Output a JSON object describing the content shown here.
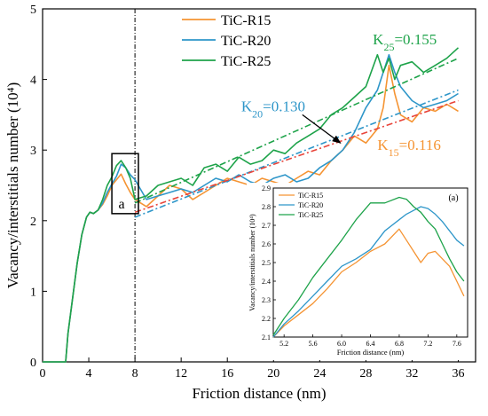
{
  "chart_data": {
    "type": "line",
    "xlabel": "Friction distance (nm)",
    "ylabel": "Vacancy/interstitials number (10⁴)",
    "xlim": [
      0,
      37.5
    ],
    "ylim": [
      0,
      5
    ],
    "x_ticks": [
      0,
      4,
      8,
      12,
      16,
      20,
      24,
      28,
      32,
      36
    ],
    "y_ticks": [
      0,
      1,
      2,
      3,
      4,
      5
    ],
    "legend_position": "top-center",
    "grid": false,
    "vline_x": 8,
    "box_label": "a",
    "box_range": {
      "x": [
        6.0,
        8.3
      ],
      "y": [
        2.1,
        2.95
      ]
    },
    "series": [
      {
        "name": "TiC-R15",
        "color": "#f59433",
        "x": [
          0,
          2.0,
          2.2,
          2.6,
          3.0,
          3.4,
          3.8,
          4.1,
          4.4,
          4.8,
          5.2,
          5.6,
          6.0,
          6.4,
          6.8,
          7.2,
          7.6,
          8.0,
          9.0,
          10,
          11,
          12,
          13,
          14,
          15,
          16,
          17,
          18,
          19,
          20,
          21,
          22,
          23,
          24,
          25,
          26,
          27,
          28,
          29,
          29.5,
          30,
          30.5,
          31,
          32,
          33,
          34,
          35,
          36
        ],
        "y": [
          0,
          0,
          0.4,
          0.9,
          1.4,
          1.8,
          2.05,
          2.12,
          2.1,
          2.15,
          2.23,
          2.35,
          2.5,
          2.58,
          2.66,
          2.52,
          2.4,
          2.3,
          2.2,
          2.35,
          2.5,
          2.45,
          2.3,
          2.4,
          2.5,
          2.6,
          2.55,
          2.5,
          2.6,
          2.55,
          2.5,
          2.6,
          2.7,
          2.65,
          2.85,
          3.0,
          3.2,
          3.1,
          3.3,
          3.6,
          4.2,
          3.8,
          3.5,
          3.4,
          3.6,
          3.55,
          3.65,
          3.55
        ]
      },
      {
        "name": "TiC-R20",
        "color": "#2e96c9",
        "x": [
          0,
          2.0,
          2.2,
          2.6,
          3.0,
          3.4,
          3.8,
          4.1,
          4.4,
          4.8,
          5.2,
          5.6,
          6.0,
          6.4,
          6.8,
          7.2,
          7.6,
          8.0,
          9.0,
          10,
          11,
          12,
          13,
          14,
          15,
          16,
          17,
          18,
          19,
          20,
          21,
          22,
          23,
          24,
          25,
          26,
          27,
          28,
          29,
          30,
          30.5,
          31,
          32,
          33,
          34,
          35,
          36
        ],
        "y": [
          0,
          0,
          0.4,
          0.9,
          1.4,
          1.8,
          2.05,
          2.12,
          2.1,
          2.15,
          2.25,
          2.4,
          2.52,
          2.63,
          2.8,
          2.75,
          2.65,
          2.58,
          2.3,
          2.35,
          2.4,
          2.45,
          2.4,
          2.5,
          2.6,
          2.55,
          2.65,
          2.55,
          2.5,
          2.6,
          2.65,
          2.55,
          2.6,
          2.75,
          2.85,
          3.0,
          3.25,
          3.6,
          3.85,
          4.35,
          4.1,
          3.9,
          3.7,
          3.6,
          3.65,
          3.7,
          3.8
        ]
      },
      {
        "name": "TiC-R25",
        "color": "#1ea34a",
        "x": [
          0,
          2.0,
          2.2,
          2.6,
          3.0,
          3.4,
          3.8,
          4.1,
          4.4,
          4.8,
          5.2,
          5.6,
          6.0,
          6.4,
          6.8,
          7.2,
          7.6,
          8.0,
          9.0,
          10,
          11,
          12,
          13,
          14,
          15,
          16,
          17,
          18,
          19,
          20,
          21,
          22,
          23,
          24,
          25,
          26,
          27,
          28,
          29,
          29.5,
          30,
          30.5,
          31,
          32,
          33,
          34,
          35,
          36
        ],
        "y": [
          0,
          0,
          0.4,
          0.9,
          1.4,
          1.8,
          2.05,
          2.12,
          2.1,
          2.15,
          2.3,
          2.5,
          2.62,
          2.78,
          2.85,
          2.75,
          2.6,
          2.3,
          2.35,
          2.5,
          2.55,
          2.6,
          2.5,
          2.75,
          2.8,
          2.7,
          2.9,
          2.8,
          2.85,
          3.0,
          2.95,
          3.1,
          3.2,
          3.3,
          3.5,
          3.6,
          3.75,
          3.9,
          4.35,
          4.1,
          4.3,
          4.0,
          4.2,
          4.25,
          4.1,
          4.2,
          4.3,
          4.45
        ]
      }
    ],
    "fit_lines": [
      {
        "color": "#1ea34a",
        "x": [
          8,
          36
        ],
        "y": [
          2.25,
          4.3
        ]
      },
      {
        "color": "#2e96c9",
        "x": [
          8,
          36
        ],
        "y": [
          2.05,
          3.85
        ]
      },
      {
        "color": "#e8443a",
        "x": [
          8,
          36
        ],
        "y": [
          2.12,
          3.7
        ]
      }
    ],
    "annotations": [
      {
        "base": "K",
        "sub": "25",
        "value": "=0.155",
        "color": "#1ea34a",
        "x": 28.6,
        "y": 4.5
      },
      {
        "base": "K",
        "sub": "20",
        "value": "=0.130",
        "color": "#2e96c9",
        "x": 17.2,
        "y": 3.55
      },
      {
        "base": "K",
        "sub": "15",
        "value": "=0.116",
        "color": "#f59433",
        "x": 29.0,
        "y": 3.0
      }
    ],
    "arrow": {
      "from": {
        "x": 22.5,
        "y": 3.5
      },
      "to": {
        "x": 25.8,
        "y": 3.1
      }
    },
    "inset": {
      "label": "(a)",
      "xlabel": "Friction distance (nm)",
      "ylabel": "Vacancy/interstitials number (10⁴)",
      "xlim": [
        5.05,
        7.75
      ],
      "ylim": [
        2.1,
        2.9
      ],
      "x_ticks": [
        5.2,
        5.6,
        6.0,
        6.4,
        6.8,
        7.2,
        7.6
      ],
      "y_ticks": [
        2.1,
        2.2,
        2.3,
        2.4,
        2.5,
        2.6,
        2.7,
        2.8,
        2.9
      ],
      "series": [
        {
          "name": "TiC-R15",
          "color": "#f59433",
          "x": [
            5.05,
            5.2,
            5.4,
            5.6,
            5.8,
            6.0,
            6.2,
            6.4,
            6.6,
            6.8,
            6.9,
            7.0,
            7.1,
            7.2,
            7.3,
            7.4,
            7.5,
            7.6,
            7.7
          ],
          "y": [
            2.1,
            2.16,
            2.22,
            2.28,
            2.36,
            2.45,
            2.5,
            2.56,
            2.6,
            2.68,
            2.62,
            2.56,
            2.5,
            2.55,
            2.56,
            2.52,
            2.48,
            2.4,
            2.32
          ]
        },
        {
          "name": "TiC-R20",
          "color": "#2e96c9",
          "x": [
            5.05,
            5.2,
            5.4,
            5.6,
            5.8,
            6.0,
            6.2,
            6.4,
            6.6,
            6.8,
            6.9,
            7.0,
            7.1,
            7.2,
            7.3,
            7.4,
            7.5,
            7.6,
            7.7
          ],
          "y": [
            2.1,
            2.17,
            2.24,
            2.32,
            2.4,
            2.48,
            2.52,
            2.57,
            2.67,
            2.73,
            2.76,
            2.78,
            2.8,
            2.79,
            2.76,
            2.72,
            2.67,
            2.62,
            2.59
          ]
        },
        {
          "name": "TiC-R25",
          "color": "#1ea34a",
          "x": [
            5.05,
            5.2,
            5.4,
            5.6,
            5.8,
            6.0,
            6.2,
            6.4,
            6.6,
            6.8,
            6.9,
            7.0,
            7.1,
            7.2,
            7.3,
            7.4,
            7.5,
            7.6,
            7.7
          ],
          "y": [
            2.11,
            2.2,
            2.3,
            2.42,
            2.52,
            2.62,
            2.73,
            2.82,
            2.82,
            2.85,
            2.84,
            2.8,
            2.77,
            2.72,
            2.68,
            2.6,
            2.52,
            2.45,
            2.4
          ]
        }
      ]
    }
  }
}
